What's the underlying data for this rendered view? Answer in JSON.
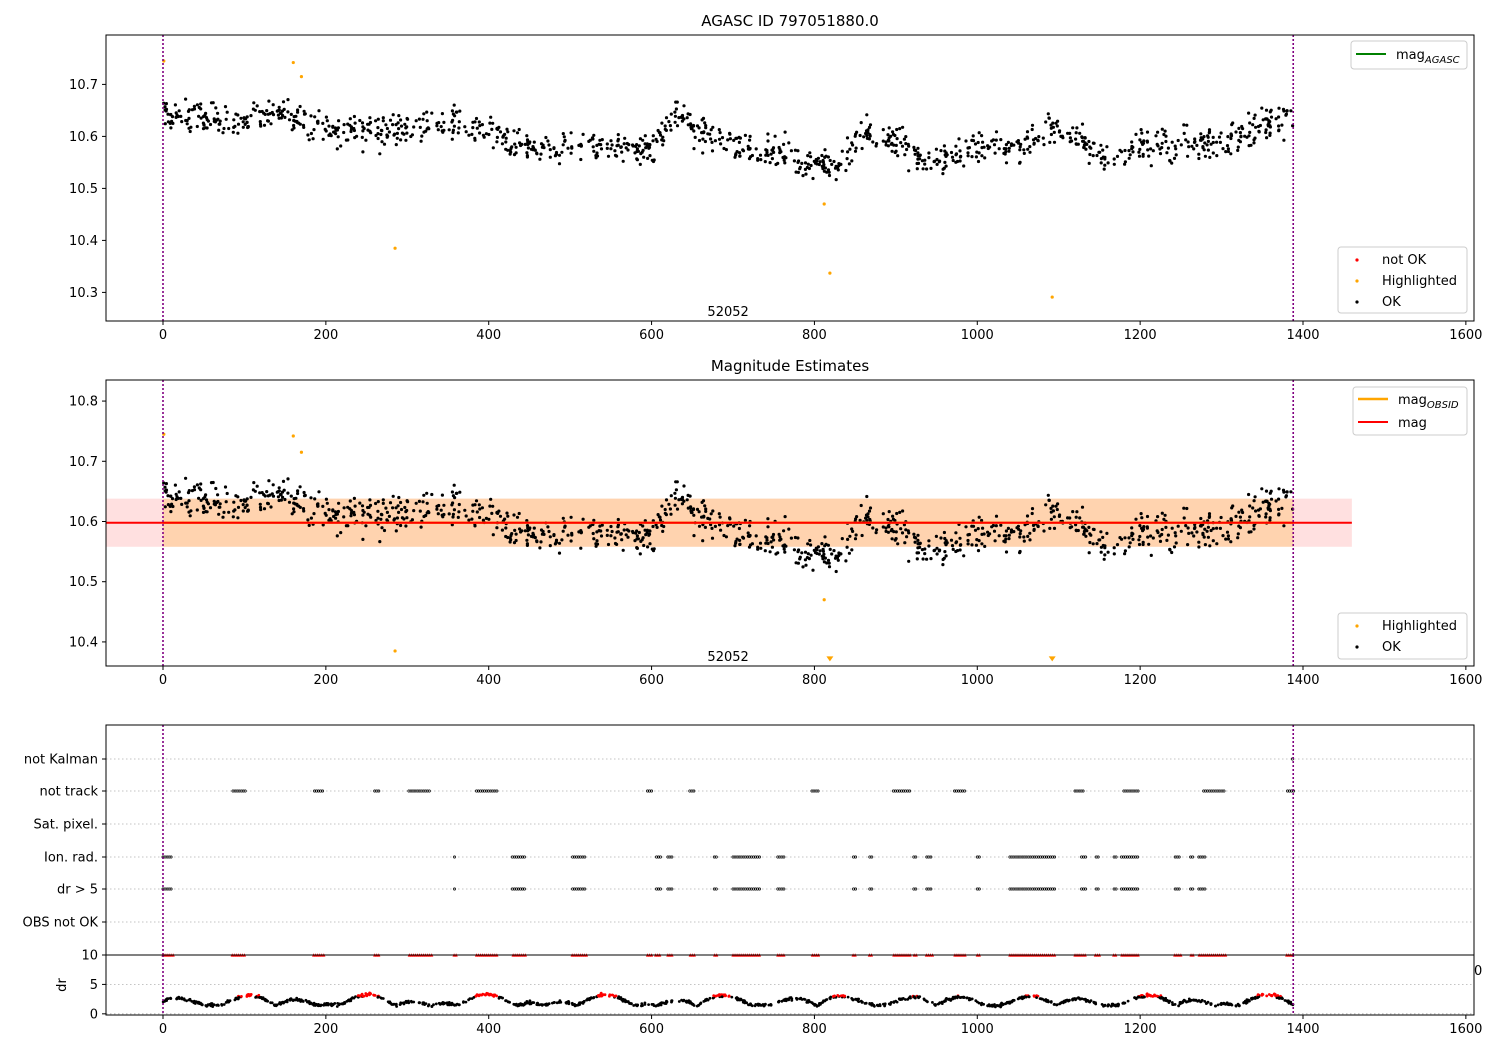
{
  "chart_data": [
    {
      "type": "scatter",
      "title": "AGASC ID 797051880.0",
      "xlim": [
        -70,
        1610
      ],
      "ylim": [
        10.245,
        10.795
      ],
      "xticks": [
        0,
        200,
        400,
        600,
        800,
        1000,
        1200,
        1400,
        1600
      ],
      "yticks": [
        10.3,
        10.4,
        10.5,
        10.6,
        10.7
      ],
      "vlines": [
        0,
        1388
      ],
      "obsid_label": {
        "text": "52052",
        "x": 694,
        "y": 10.262
      },
      "legend_lines": [
        {
          "label": "mag",
          "sub": "AGASC",
          "color": "#008000"
        }
      ],
      "legend_markers": [
        {
          "label": "not OK",
          "color": "#ff0000"
        },
        {
          "label": "Highlighted",
          "color": "#ffa500"
        },
        {
          "label": "OK",
          "color": "#000000"
        }
      ],
      "series": [
        {
          "name": "OK",
          "color": "#000000",
          "generated": {
            "n": 1160,
            "seed": 7,
            "x_range": [
              0,
              1388
            ]
          }
        },
        {
          "name": "Highlighted",
          "color": "#ffa500",
          "points": [
            [
              1,
              10.745
            ],
            [
              160,
              10.742
            ],
            [
              170,
              10.715
            ],
            [
              285,
              10.385
            ],
            [
              812,
              10.47
            ],
            [
              819,
              10.337
            ],
            [
              1092,
              10.291
            ]
          ]
        }
      ]
    },
    {
      "type": "scatter",
      "title": "Magnitude Estimates",
      "xlim": [
        -70,
        1610
      ],
      "ylim": [
        10.36,
        10.835
      ],
      "xticks": [
        0,
        200,
        400,
        600,
        800,
        1000,
        1200,
        1400,
        1600
      ],
      "yticks": [
        10.4,
        10.5,
        10.6,
        10.7,
        10.8
      ],
      "vlines": [
        0,
        1388
      ],
      "obsid_label": {
        "text": "52052",
        "x": 694,
        "y": 10.375
      },
      "mag": {
        "value": 10.598,
        "band": [
          10.558,
          10.638
        ],
        "x_range": [
          -70,
          1460
        ],
        "color": "#ff0000"
      },
      "mag_obsid": {
        "value": 10.598,
        "band": [
          10.558,
          10.638
        ],
        "x_range": [
          0,
          1388
        ],
        "color": "#ffa500"
      },
      "legend_lines": [
        {
          "label": "mag",
          "sub": "OBSID",
          "color": "#ffa500"
        },
        {
          "label": "mag",
          "sub": "",
          "color": "#ff0000"
        }
      ],
      "legend_markers": [
        {
          "label": "Highlighted",
          "color": "#ffa500"
        },
        {
          "label": "OK",
          "color": "#000000"
        }
      ],
      "series": [
        {
          "name": "OK",
          "color": "#000000",
          "generated": {
            "n": 1160,
            "seed": 7,
            "x_range": [
              0,
              1388
            ]
          }
        },
        {
          "name": "Highlighted",
          "color": "#ffa500",
          "points": [
            [
              1,
              10.745
            ],
            [
              160,
              10.742
            ],
            [
              170,
              10.715
            ],
            [
              285,
              10.385
            ],
            [
              812,
              10.47
            ]
          ]
        },
        {
          "name": "Highlighted (out of range)",
          "color": "#ffa500",
          "marker": "triangle-down",
          "points": [
            [
              819,
              10.366
            ],
            [
              1092,
              10.366
            ]
          ]
        }
      ]
    },
    {
      "type": "event-raster",
      "xlim": [
        -70,
        1610
      ],
      "vlines": [
        0,
        1388
      ],
      "categories": [
        "not Kalman",
        "not track",
        "Sat. pixel.",
        "Ion. rad.",
        "dr > 5",
        "OBS not OK"
      ],
      "intervals": {
        "not Kalman": [
          [
            1387,
            1389
          ]
        ],
        "not track": [
          [
            86,
            101
          ],
          [
            186,
            198
          ],
          [
            260,
            266
          ],
          [
            302,
            329
          ],
          [
            385,
            410
          ],
          [
            595,
            600
          ],
          [
            647,
            652
          ],
          [
            797,
            805
          ],
          [
            897,
            917
          ],
          [
            972,
            985
          ],
          [
            1120,
            1130
          ],
          [
            1180,
            1198
          ],
          [
            1278,
            1304
          ],
          [
            1381,
            1389
          ]
        ],
        "Sat. pixel.": [],
        "Ion. rad.": [
          [
            0,
            12
          ],
          [
            358,
            360
          ],
          [
            429,
            445
          ],
          [
            503,
            520
          ],
          [
            606,
            611
          ],
          [
            620,
            625
          ],
          [
            677,
            680
          ],
          [
            700,
            733
          ],
          [
            755,
            763
          ],
          [
            848,
            851
          ],
          [
            868,
            871
          ],
          [
            922,
            925
          ],
          [
            938,
            945
          ],
          [
            1000,
            1003
          ],
          [
            1040,
            1096
          ],
          [
            1128,
            1133
          ],
          [
            1146,
            1149
          ],
          [
            1168,
            1171
          ],
          [
            1177,
            1198
          ],
          [
            1243,
            1250
          ],
          [
            1262,
            1266
          ],
          [
            1272,
            1281
          ]
        ],
        "dr > 5": [
          [
            0,
            12
          ],
          [
            358,
            360
          ],
          [
            429,
            445
          ],
          [
            503,
            520
          ],
          [
            606,
            611
          ],
          [
            620,
            625
          ],
          [
            677,
            680
          ],
          [
            700,
            733
          ],
          [
            755,
            763
          ],
          [
            848,
            851
          ],
          [
            868,
            871
          ],
          [
            922,
            925
          ],
          [
            938,
            945
          ],
          [
            1000,
            1003
          ],
          [
            1040,
            1096
          ],
          [
            1128,
            1133
          ],
          [
            1146,
            1149
          ],
          [
            1168,
            1171
          ],
          [
            1177,
            1198
          ],
          [
            1243,
            1250
          ],
          [
            1262,
            1266
          ],
          [
            1272,
            1281
          ]
        ],
        "OBS not OK": []
      }
    },
    {
      "type": "scatter",
      "ylabel": "dr",
      "xlim": [
        -70,
        1610
      ],
      "ylim": [
        -0.2,
        10
      ],
      "xticks": [
        0,
        200,
        400,
        600,
        800,
        1000,
        1200,
        1400,
        1600
      ],
      "yticks": [
        0,
        5,
        10
      ],
      "vlines": [
        0,
        1388
      ],
      "overflow_value": 10,
      "edge_text": "0",
      "dr_model": {
        "n": 1160,
        "seed": 11,
        "x_range": [
          0,
          1388
        ],
        "period": 96,
        "base": 1.4,
        "amplitude": 1.9,
        "red_threshold": 2.95
      },
      "series": [
        {
          "name": "OK",
          "color": "#000000"
        },
        {
          "name": "not OK",
          "color": "#ff0000"
        }
      ]
    }
  ]
}
